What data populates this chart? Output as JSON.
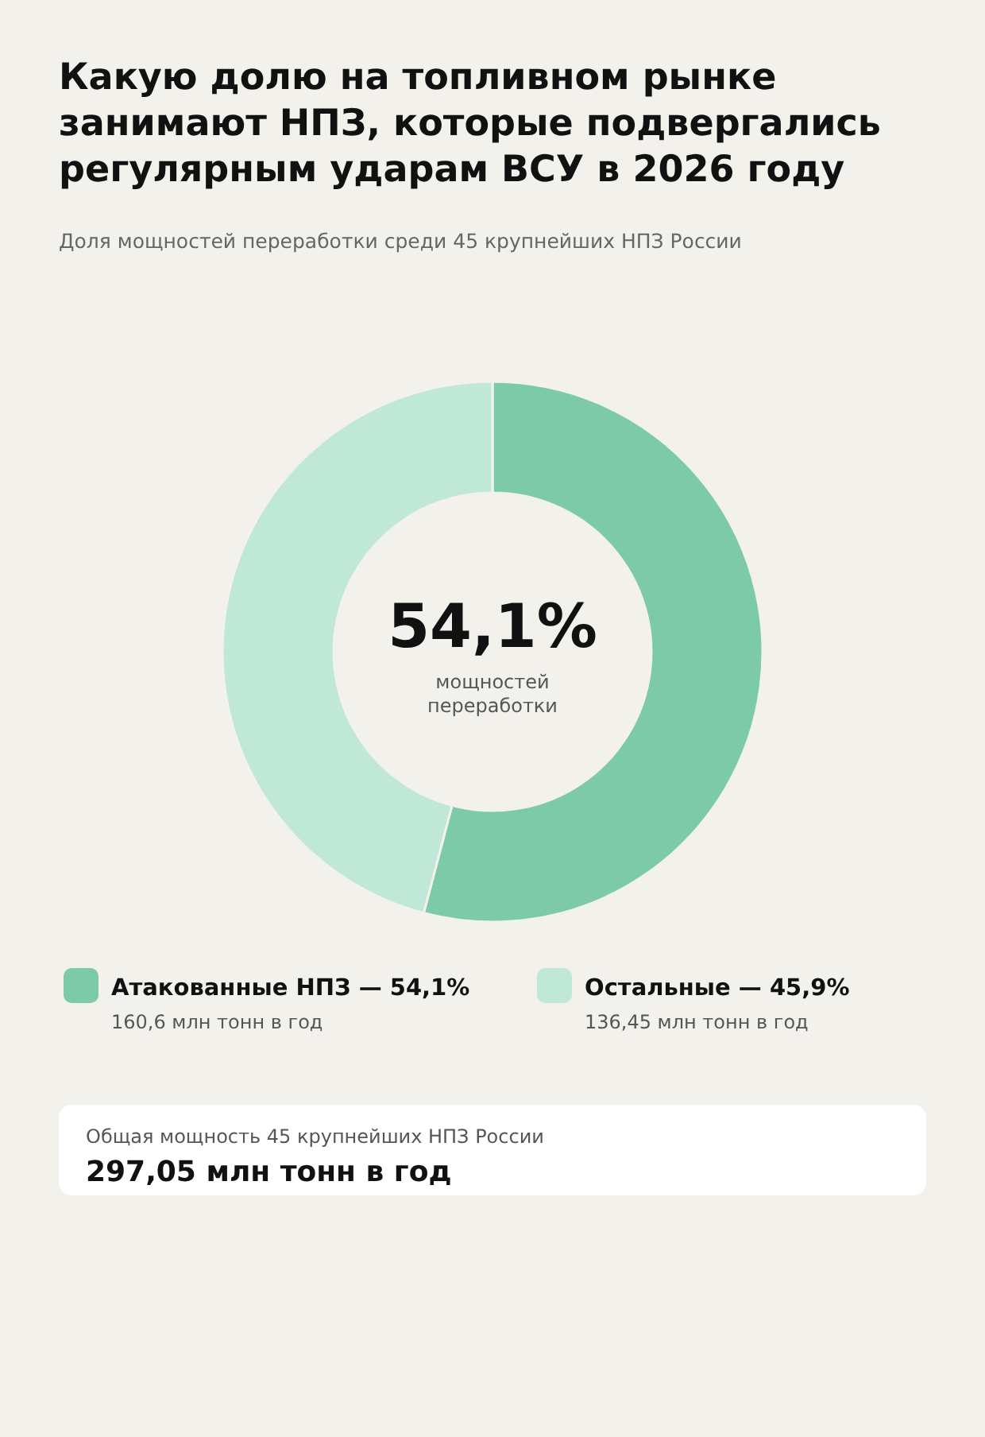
{
  "chart_data": {
    "type": "donut",
    "title": "Какую долю на топливном рынке занимают НПЗ, которые подвергались регулярным ударам ВСУ в 2026 году",
    "subtitle": "Доля мощностей переработки среди 45 крупнейших НПЗ России",
    "categories": [
      "Атакованные НПЗ — 54,1%",
      "Остальные — 45,9%"
    ],
    "values": [
      54.1,
      45.9
    ],
    "colors": [
      "#7ccaa8",
      "#c0e8d8"
    ],
    "legend": "bottom",
    "annotations": [
      "54,1%",
      "мощностей переработки",
      "160,6 млн тонн в год",
      "136,45 млн тонн в год",
      "Общая мощность 45 крупнейших НПЗ России",
      "297,05 млн тонн в год"
    ]
  }
}
